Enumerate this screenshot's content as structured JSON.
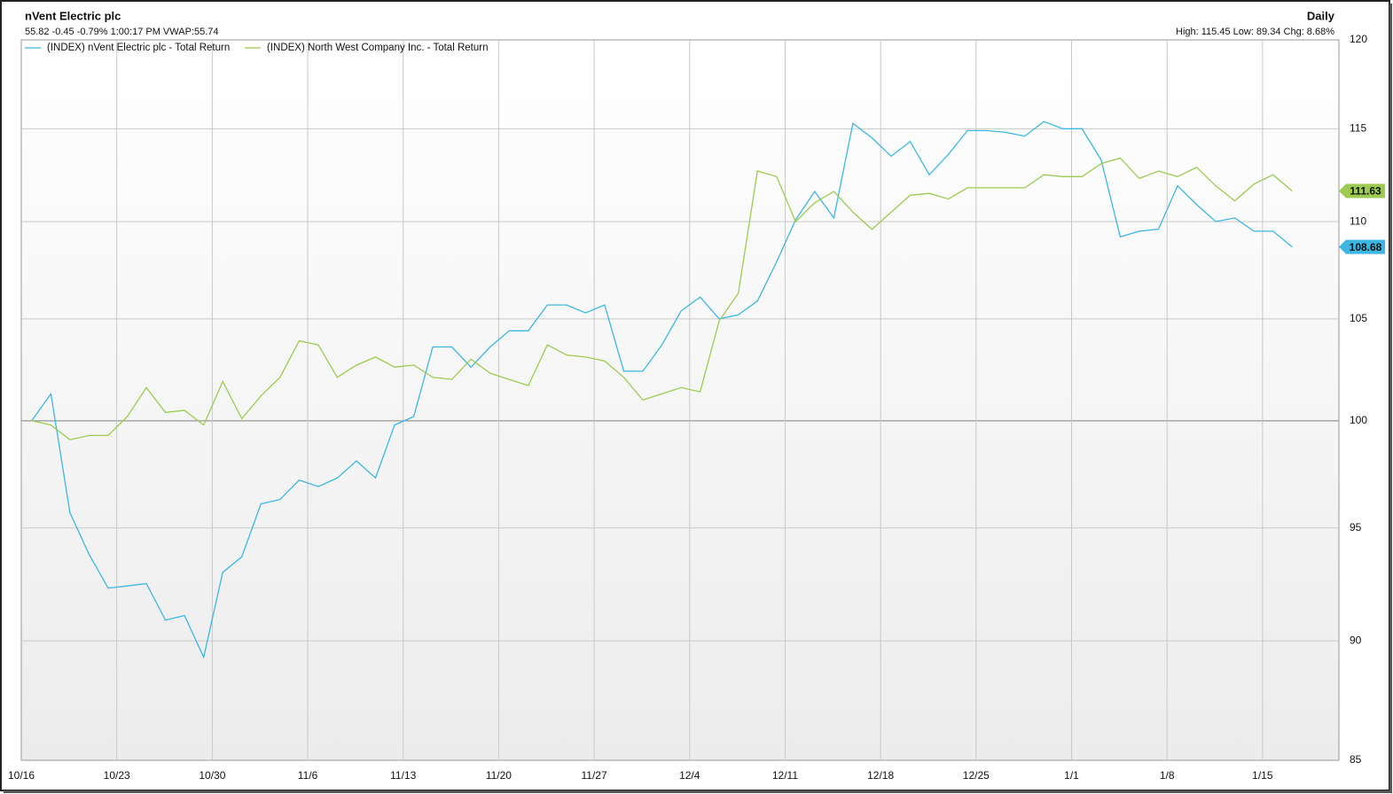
{
  "chart_data": {
    "type": "line",
    "title": "nVent Electric plc",
    "subtitle": "55.82 -0.45 -0.79% 1:00:17 PM VWAP:55.74",
    "period": "Daily",
    "stats": "High: 115.45 Low: 89.34 Chg: 8.68%",
    "categories": [
      "10/16",
      null,
      null,
      null,
      null,
      "10/23",
      null,
      null,
      null,
      null,
      "10/30",
      null,
      null,
      null,
      null,
      "11/6",
      null,
      null,
      null,
      null,
      "11/13",
      null,
      null,
      null,
      null,
      "11/20",
      null,
      null,
      null,
      null,
      "11/27",
      null,
      null,
      null,
      null,
      "12/4",
      null,
      null,
      null,
      null,
      "12/11",
      null,
      null,
      null,
      null,
      "12/18",
      null,
      null,
      null,
      null,
      "12/25",
      null,
      null,
      null,
      null,
      "1/1",
      null,
      null,
      null,
      null,
      "1/8",
      null,
      null,
      null,
      null,
      "1/15",
      null
    ],
    "series": [
      {
        "name": "(INDEX) nVent Electric plc - Total Return",
        "color": "#3cb7e3",
        "values": [
          100,
          101.3,
          95.7,
          93.8,
          92.3,
          92.4,
          92.5,
          90.9,
          91.1,
          89.3,
          93,
          93.7,
          96.1,
          96.3,
          97.2,
          96.9,
          97.3,
          98.1,
          97.3,
          99.8,
          100.2,
          103.6,
          103.6,
          102.6,
          103.6,
          104.4,
          104.4,
          105.7,
          105.7,
          105.3,
          105.7,
          102.4,
          102.4,
          103.7,
          105.4,
          106.1,
          105,
          105.2,
          105.9,
          107.9,
          110.1,
          111.6,
          110.2,
          115.3,
          114.5,
          113.5,
          114.3,
          112.5,
          113.6,
          114.9,
          114.9,
          114.8,
          114.6,
          115.4,
          115,
          115,
          113.3,
          109.2,
          109.5,
          109.6,
          111.9,
          110.9,
          110,
          110.2,
          109.5,
          109.5,
          108.68
        ]
      },
      {
        "name": "(INDEX) North West Company Inc. - Total Return",
        "color": "#9ccb4f",
        "values": [
          100,
          99.8,
          99.1,
          99.3,
          99.3,
          100.2,
          101.6,
          100.4,
          100.5,
          99.8,
          101.9,
          100.1,
          101.2,
          102.1,
          103.9,
          103.7,
          102.1,
          102.7,
          103.1,
          102.6,
          102.7,
          102.1,
          102,
          103,
          102.3,
          102,
          101.7,
          103.7,
          103.2,
          103.1,
          102.9,
          102.1,
          101,
          101.3,
          101.6,
          101.4,
          104.9,
          106.3,
          112.7,
          112.4,
          110,
          111,
          111.6,
          110.5,
          109.6,
          110.5,
          111.4,
          111.5,
          111.2,
          111.8,
          111.8,
          111.8,
          111.8,
          112.5,
          112.4,
          112.4,
          113.1,
          113.4,
          112.3,
          112.7,
          112.4,
          112.9,
          111.9,
          111.1,
          112,
          112.5,
          111.63
        ]
      }
    ],
    "ylim": [
      85,
      120
    ],
    "yticks": [
      85,
      90,
      95,
      100,
      105,
      110,
      115,
      120
    ],
    "log_scale": true,
    "grid": true,
    "reference_line": 100,
    "legend": "top-left"
  }
}
